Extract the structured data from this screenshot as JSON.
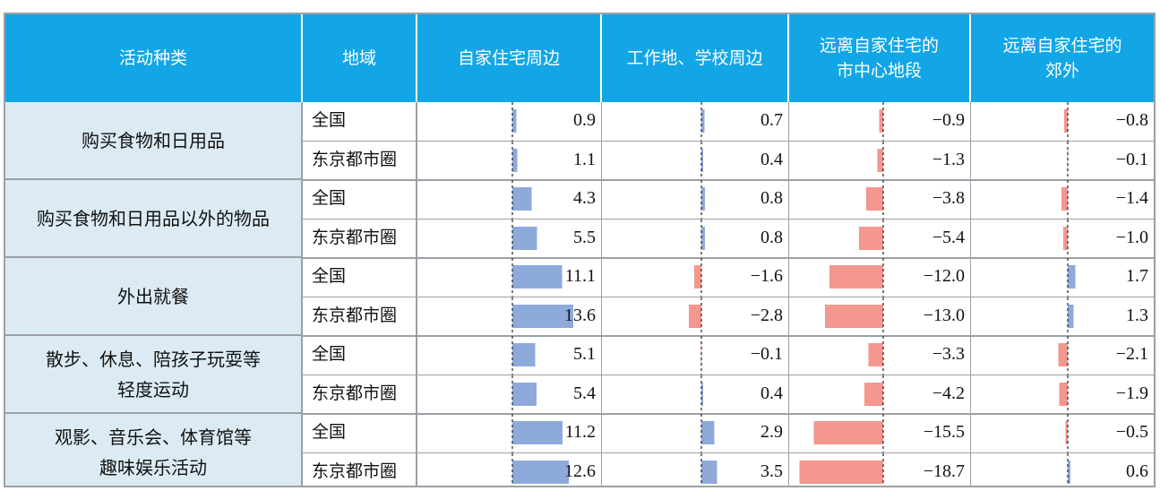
{
  "header": {
    "activity": "活动种类",
    "region": "地域",
    "columns": [
      "自家住宅周边",
      "工作地、学校周边",
      "远离自家住宅的\n市中心地段",
      "远离自家住宅的\n郊外"
    ]
  },
  "colors": {
    "positive": "#8eaadb",
    "negative": "#f4978e",
    "header_bg": "#13a6e6",
    "activity_bg": "#dcebf3"
  },
  "chart_data": {
    "type": "table",
    "columns": [
      "自家住宅周边",
      "工作地、学校周边",
      "远离自家住宅的市中心地段",
      "远离自家住宅的郊外"
    ],
    "groups": [
      {
        "activity": "购买食物和日用品",
        "rows": [
          {
            "region": "全国",
            "values": [
              "0.9",
              "0.7",
              "−0.9",
              "−0.8"
            ]
          },
          {
            "region": "东京都市圈",
            "values": [
              "1.1",
              "0.4",
              "−1.3",
              "−0.1"
            ]
          }
        ]
      },
      {
        "activity": "购买食物和日用品以外的物品",
        "rows": [
          {
            "region": "全国",
            "values": [
              "4.3",
              "0.8",
              "−3.8",
              "−1.4"
            ]
          },
          {
            "region": "东京都市圈",
            "values": [
              "5.5",
              "0.8",
              "−5.4",
              "−1.0"
            ]
          }
        ]
      },
      {
        "activity": "外出就餐",
        "rows": [
          {
            "region": "全国",
            "values": [
              "11.1",
              "−1.6",
              "−12.0",
              "1.7"
            ]
          },
          {
            "region": "东京都市圈",
            "values": [
              "13.6",
              "−2.8",
              "−13.0",
              "1.3"
            ]
          }
        ]
      },
      {
        "activity": "散步、休息、陪孩子玩耍等\n轻度运动",
        "rows": [
          {
            "region": "全国",
            "values": [
              "5.1",
              "−0.1",
              "−3.3",
              "−2.1"
            ]
          },
          {
            "region": "东京都市圈",
            "values": [
              "5.4",
              "0.4",
              "−4.2",
              "−1.9"
            ]
          }
        ]
      },
      {
        "activity": "观影、音乐会、体育馆等\n趣味娱乐活动",
        "rows": [
          {
            "region": "全国",
            "values": [
              "11.2",
              "2.9",
              "−15.5",
              "−0.5"
            ]
          },
          {
            "region": "东京都市圈",
            "values": [
              "12.6",
              "3.5",
              "−18.7",
              "0.6"
            ]
          }
        ]
      }
    ]
  }
}
